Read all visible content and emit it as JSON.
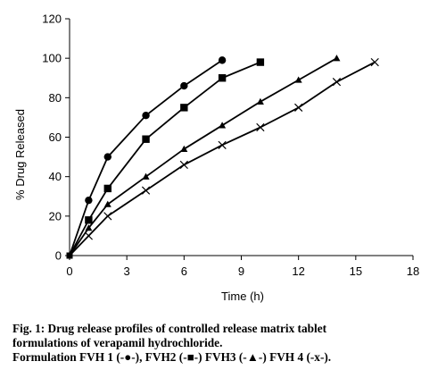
{
  "chart_data": {
    "type": "line",
    "xlabel": "Time (h)",
    "ylabel": "% Drug Released",
    "xlim": [
      0,
      18
    ],
    "ylim": [
      0,
      120
    ],
    "xticks": [
      0,
      3,
      6,
      9,
      12,
      15,
      18
    ],
    "yticks": [
      0,
      20,
      40,
      60,
      80,
      100,
      120
    ],
    "grid": false,
    "series": [
      {
        "name": "FVH 1",
        "marker": "circle",
        "x": [
          0,
          1,
          2,
          4,
          6,
          8
        ],
        "y": [
          0,
          28,
          50,
          71,
          86,
          99
        ]
      },
      {
        "name": "FVH2",
        "marker": "square",
        "x": [
          0,
          1,
          2,
          4,
          6,
          8,
          10
        ],
        "y": [
          0,
          18,
          34,
          59,
          75,
          90,
          98
        ]
      },
      {
        "name": "FVH3",
        "marker": "triangle",
        "x": [
          0,
          1,
          2,
          4,
          6,
          8,
          10,
          12,
          14
        ],
        "y": [
          0,
          14,
          26,
          40,
          54,
          66,
          78,
          89,
          100
        ]
      },
      {
        "name": "FVH 4",
        "marker": "x",
        "x": [
          0,
          1,
          2,
          4,
          6,
          8,
          10,
          12,
          14,
          16
        ],
        "y": [
          0,
          10,
          20,
          33,
          46,
          56,
          65,
          75,
          88,
          98
        ]
      }
    ]
  },
  "caption": {
    "line1": "Fig. 1: Drug release profiles of controlled release matrix tablet",
    "line2": "formulations of verapamil hydrochloride.",
    "line3": "Formulation FVH 1 (-●-), FVH2 (-■-) FVH3 (-▲-) FVH 4 (-x-)."
  }
}
